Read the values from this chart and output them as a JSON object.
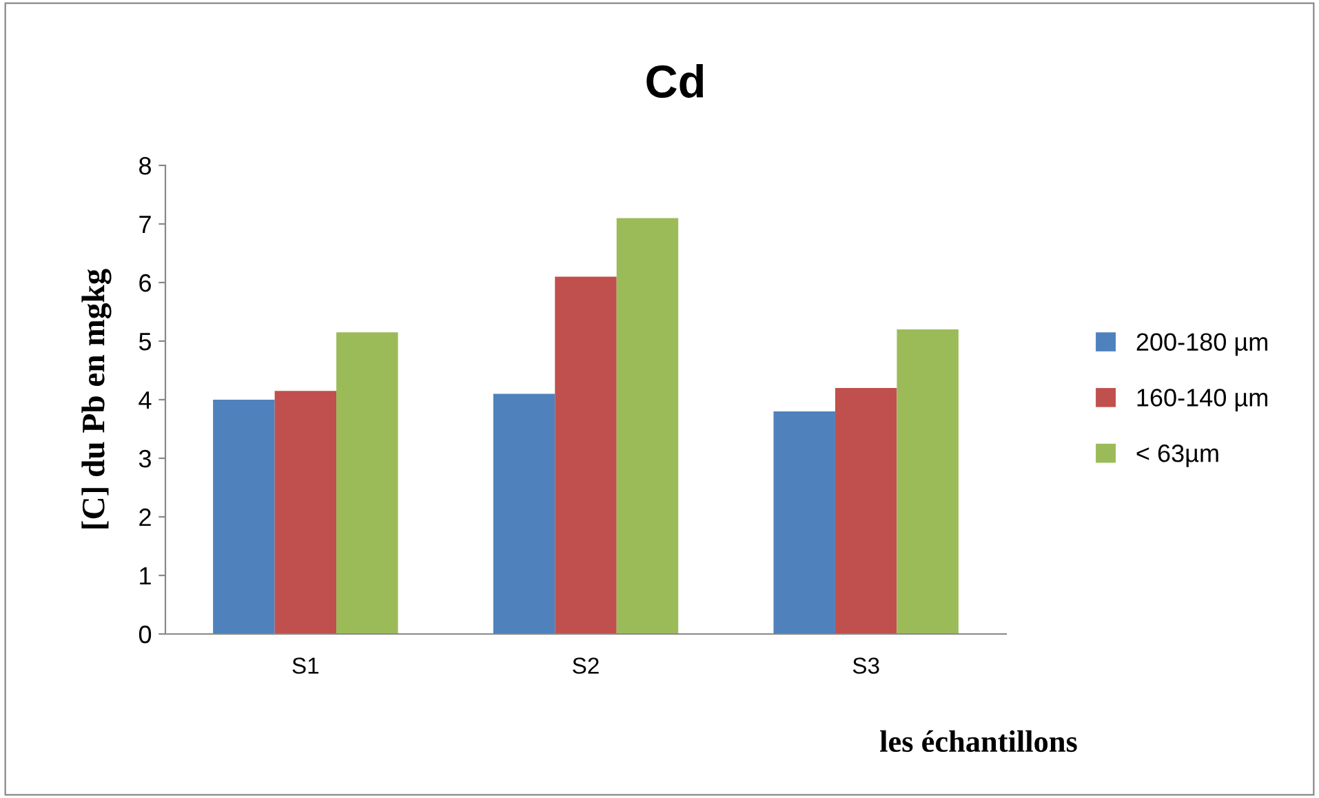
{
  "chart_data": {
    "type": "bar",
    "title": "Cd",
    "xlabel": "les échantillons",
    "ylabel": "[C] du Pb en mgkg",
    "categories": [
      "S1",
      "S2",
      "S3"
    ],
    "series": [
      {
        "name": "200-180 µm",
        "color": "#4f81bd",
        "values": [
          4.0,
          4.1,
          3.8
        ]
      },
      {
        "name": "160-140 µm",
        "color": "#c0504d",
        "values": [
          4.15,
          6.1,
          4.2
        ]
      },
      {
        "name": "< 63µm",
        "color": "#9bbb59",
        "values": [
          5.15,
          7.1,
          5.2
        ]
      }
    ],
    "ylim": [
      0,
      8
    ],
    "yticks": [
      0,
      1,
      2,
      3,
      4,
      5,
      6,
      7,
      8
    ],
    "grid": false,
    "legend": "right"
  }
}
